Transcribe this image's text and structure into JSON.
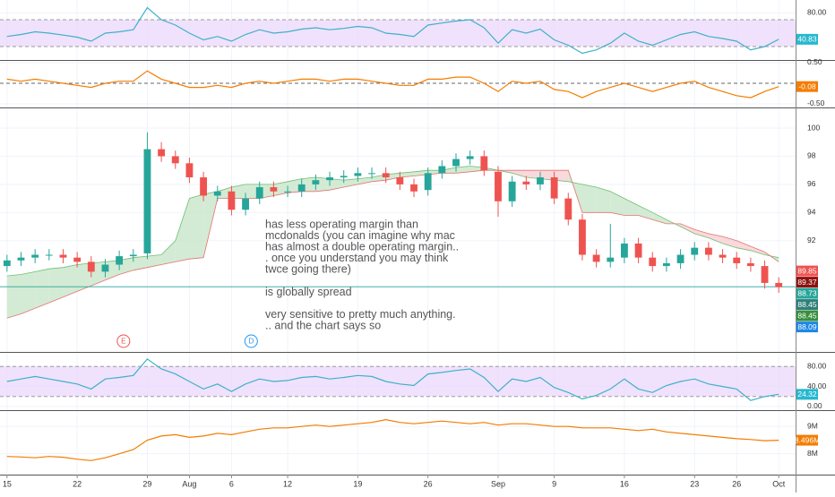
{
  "x_axis": {
    "xlim": [
      -0.5,
      56.2
    ],
    "x": [
      0,
      1,
      2,
      3,
      4,
      5,
      6,
      7,
      8,
      9,
      10,
      11,
      12,
      13,
      14,
      15,
      16,
      17,
      18,
      19,
      20,
      21,
      22,
      23,
      24,
      25,
      26,
      27,
      28,
      29,
      30,
      31,
      32,
      33,
      34,
      35,
      36,
      37,
      38,
      39,
      40,
      41,
      42,
      43,
      44,
      45,
      46,
      47,
      48,
      49,
      50,
      51,
      52,
      53,
      54,
      55
    ],
    "xticks": [
      {
        "value": 0,
        "label": "15"
      },
      {
        "value": 5,
        "label": "22"
      },
      {
        "value": 10,
        "label": "29"
      },
      {
        "value": 13,
        "label": "Aug"
      },
      {
        "value": 16,
        "label": "6"
      },
      {
        "value": 20,
        "label": "12"
      },
      {
        "value": 25,
        "label": "19"
      },
      {
        "value": 30,
        "label": "26"
      },
      {
        "value": 35,
        "label": "Sep"
      },
      {
        "value": 39,
        "label": "9"
      },
      {
        "value": 44,
        "label": "16"
      },
      {
        "value": 49,
        "label": "23"
      },
      {
        "value": 52,
        "label": "26"
      },
      {
        "value": 55,
        "label": "Oct"
      }
    ]
  },
  "chart_data": [
    {
      "type": "line",
      "ylim": [
        10,
        99.3
      ],
      "yticks": [
        {
          "value": 80,
          "label": "80.00"
        }
      ],
      "bands": [
        30,
        70
      ],
      "band_color": "#ead6fb",
      "series": [
        {
          "color": "#3fb0c9",
          "values": [
            45,
            48,
            52,
            50,
            47,
            44,
            38,
            50,
            52,
            55,
            88,
            70,
            62,
            50,
            40,
            45,
            38,
            48,
            55,
            50,
            52,
            56,
            58,
            55,
            57,
            60,
            58,
            50,
            48,
            45,
            62,
            65,
            68,
            70,
            58,
            35,
            55,
            50,
            56,
            40,
            32,
            20,
            25,
            35,
            50,
            38,
            32,
            40,
            48,
            52,
            45,
            42,
            38,
            25,
            30,
            40.83
          ]
        }
      ],
      "price_labels": [
        {
          "value": 40.83,
          "color": "#26b8cf"
        }
      ]
    },
    {
      "type": "line",
      "ylim": [
        -0.587,
        0.543
      ],
      "yticks": [
        {
          "value": 0.5,
          "label": "0.50"
        },
        {
          "value": -0.5,
          "label": "-0.50"
        }
      ],
      "hline": 0,
      "series": [
        {
          "color": "#f57c00",
          "values": [
            0.1,
            0.05,
            0.1,
            0.05,
            0,
            -0.05,
            -0.1,
            0,
            0.05,
            0.05,
            0.3,
            0.1,
            0,
            -0.1,
            -0.1,
            -0.05,
            -0.1,
            0,
            0.05,
            0,
            0.05,
            0.1,
            0.1,
            0.05,
            0.1,
            0.1,
            0.05,
            0,
            -0.05,
            -0.05,
            0.1,
            0.1,
            0.15,
            0.15,
            0,
            -0.2,
            0.05,
            0,
            0.05,
            -0.15,
            -0.2,
            -0.35,
            -0.2,
            -0.1,
            0,
            -0.1,
            -0.2,
            -0.1,
            0,
            0.05,
            -0.1,
            -0.2,
            -0.3,
            -0.35,
            -0.2,
            -0.08
          ]
        }
      ],
      "price_labels": [
        {
          "value": -0.08,
          "color": "#f57c00"
        }
      ]
    },
    {
      "type": "candlestick",
      "ylim": [
        84.1,
        101.4
      ],
      "yticks": [
        92,
        94,
        96,
        98,
        100
      ],
      "up_color": "#26a69a",
      "down_color": "#ef5350",
      "open": [
        90.2,
        90.6,
        90.8,
        91.0,
        91.0,
        90.8,
        90.5,
        89.8,
        90.3,
        90.9,
        91.1,
        98.5,
        98.0,
        97.5,
        96.5,
        95.2,
        95.5,
        94.2,
        95.0,
        95.8,
        95.5,
        95.5,
        96.0,
        96.3,
        96.5,
        96.6,
        96.8,
        96.8,
        96.5,
        96.0,
        95.6,
        96.8,
        97.3,
        97.8,
        98.0,
        96.9,
        94.8,
        96.2,
        96.0,
        96.5,
        95.0,
        93.5,
        91.0,
        90.5,
        90.8,
        91.8,
        90.8,
        90.2,
        90.4,
        91.0,
        91.5,
        91.0,
        90.8,
        90.4,
        90.2,
        89.0
      ],
      "high": [
        91.0,
        91.2,
        91.4,
        91.4,
        91.4,
        91.2,
        90.9,
        90.7,
        91.3,
        91.4,
        99.7,
        99.0,
        98.4,
        97.9,
        96.9,
        95.9,
        95.9,
        95.4,
        96.2,
        96.2,
        95.9,
        96.4,
        96.7,
        96.9,
        97.0,
        97.2,
        97.2,
        97.2,
        96.9,
        96.4,
        97.2,
        97.7,
        98.2,
        98.4,
        98.4,
        97.3,
        96.6,
        96.6,
        96.9,
        96.9,
        95.4,
        93.9,
        91.4,
        93.2,
        92.2,
        92.2,
        91.2,
        90.8,
        91.4,
        91.9,
        91.9,
        91.4,
        91.2,
        90.8,
        90.6,
        89.4
      ],
      "low": [
        89.8,
        90.2,
        90.4,
        90.6,
        90.4,
        90.1,
        89.4,
        89.4,
        89.9,
        90.5,
        90.7,
        97.6,
        97.1,
        96.1,
        94.8,
        94.8,
        93.8,
        93.8,
        94.6,
        95.1,
        95.1,
        95.1,
        95.6,
        95.9,
        96.1,
        96.2,
        96.4,
        96.1,
        95.6,
        95.1,
        95.2,
        96.4,
        96.9,
        97.4,
        96.6,
        93.7,
        94.4,
        95.6,
        95.6,
        94.6,
        93.1,
        90.6,
        90.1,
        90.1,
        90.4,
        90.4,
        89.8,
        89.8,
        90.0,
        90.6,
        90.6,
        90.4,
        90.0,
        89.8,
        88.6,
        88.3
      ],
      "close": [
        90.6,
        90.8,
        91.0,
        91.0,
        90.8,
        90.5,
        89.8,
        90.3,
        90.9,
        91.0,
        98.5,
        98.0,
        97.5,
        96.5,
        95.2,
        95.5,
        94.2,
        95.0,
        95.8,
        95.5,
        95.5,
        96.0,
        96.3,
        96.5,
        96.6,
        96.8,
        96.8,
        96.5,
        96.0,
        95.5,
        96.8,
        97.3,
        97.8,
        98.0,
        97.0,
        94.8,
        96.2,
        96.0,
        96.5,
        95.0,
        93.5,
        91.0,
        90.5,
        90.8,
        91.8,
        90.8,
        90.2,
        90.4,
        91.0,
        91.5,
        91.0,
        90.8,
        90.4,
        90.2,
        89.0,
        88.7
      ],
      "cloud": {
        "up_color": "#c8e6c9",
        "down_color": "#f8cfd2",
        "series": [
          {
            "color": "#6fbf73",
            "values": [
              89.5,
              89.6,
              89.8,
              90,
              90.1,
              90.3,
              90.4,
              90.5,
              90.6,
              90.8,
              90.9,
              91,
              92,
              95,
              95.3,
              95.5,
              95.8,
              96,
              96,
              96,
              96.2,
              96.4,
              96.5,
              96.4,
              96.3,
              96.4,
              96.5,
              96.7,
              96.8,
              96.9,
              97,
              97,
              97.2,
              97.3,
              97.2,
              97,
              96.8,
              96.5,
              96.4,
              96.3,
              96.2,
              96,
              95.8,
              95.5,
              95,
              94.5,
              94,
              93.5,
              93,
              92.5,
              92.2,
              91.8,
              91.5,
              91.3,
              91,
              90.8
            ]
          },
          {
            "color": "#e57373",
            "values": [
              86.5,
              86.8,
              87.2,
              87.6,
              88,
              88.4,
              88.8,
              89.2,
              89.6,
              89.9,
              90.1,
              90.3,
              90.5,
              90.7,
              90.8,
              95,
              95,
              95,
              95,
              95.2,
              95.4,
              95.5,
              95.5,
              95.6,
              95.8,
              96,
              96.2,
              96.3,
              96.5,
              96.6,
              96.7,
              96.8,
              96.8,
              96.9,
              97,
              97,
              97,
              97,
              97,
              97,
              97,
              94,
              94,
              94,
              93.8,
              93.8,
              93.5,
              93.2,
              93.2,
              92.8,
              92.5,
              92.3,
              92,
              91.6,
              91.2,
              90.5
            ]
          }
        ]
      },
      "price_line": {
        "value": 88.73,
        "color": "#26a69a"
      },
      "price_labels": [
        {
          "value": 89.85,
          "color": "#ef5350"
        },
        {
          "value": 89.37,
          "color": "#8e1010"
        },
        {
          "value": 88.73,
          "color": "#26a69a"
        },
        {
          "value": 88.45,
          "color": "#2f7f7a"
        },
        {
          "value": 88.45,
          "color": "#388e3c"
        },
        {
          "value": 88.09,
          "color": "#1e88e5"
        }
      ],
      "events": [
        {
          "label": "E",
          "x": 8.3,
          "color": "#ef5350"
        },
        {
          "label": "D",
          "x": 17.4,
          "color": "#2196f3"
        }
      ],
      "annotation": [
        [
          "has less operating margin than",
          "mcdonalds (you can imagine why mac",
          "has almost a double operating margin..",
          ". once you understand you may think",
          "twce going there)"
        ],
        [
          "is globally spread"
        ],
        [
          "very sensitive to pretty much anything.",
          ".. and the chart says so"
        ]
      ]
    },
    {
      "type": "line",
      "ylim": [
        -7.3,
        107.3
      ],
      "yticks": [
        {
          "value": 0,
          "label": "0.00"
        },
        {
          "value": 40,
          "label": "40.00"
        },
        {
          "value": 80,
          "label": "80.00"
        }
      ],
      "bands": [
        20,
        80
      ],
      "band_color": "#ead6fb",
      "series": [
        {
          "color": "#3fb0c9",
          "values": [
            50,
            55,
            60,
            55,
            50,
            45,
            35,
            55,
            58,
            62,
            95,
            75,
            65,
            50,
            35,
            45,
            30,
            45,
            55,
            50,
            52,
            58,
            60,
            55,
            58,
            62,
            60,
            50,
            45,
            42,
            65,
            68,
            72,
            75,
            58,
            30,
            55,
            50,
            58,
            38,
            28,
            15,
            22,
            35,
            55,
            35,
            28,
            42,
            50,
            55,
            45,
            40,
            35,
            12,
            20,
            24.32
          ]
        }
      ],
      "price_labels": [
        {
          "value": 24.32,
          "color": "#26b8cf"
        }
      ]
    },
    {
      "type": "line",
      "ylim": [
        7233000,
        9567000
      ],
      "yticks": [
        {
          "value": 9000000,
          "label": "9M"
        },
        {
          "value": 8000000,
          "label": "8M"
        }
      ],
      "series": [
        {
          "color": "#f57c00",
          "values": [
            7900000,
            7880000,
            7850000,
            7900000,
            7870000,
            7800000,
            7750000,
            7850000,
            8000000,
            8150000,
            8500000,
            8650000,
            8700000,
            8600000,
            8650000,
            8750000,
            8700000,
            8800000,
            8900000,
            8950000,
            8950000,
            9000000,
            9050000,
            9000000,
            9050000,
            9100000,
            9150000,
            9250000,
            9150000,
            9100000,
            9150000,
            9200000,
            9150000,
            9100000,
            9150000,
            9050000,
            9100000,
            9100000,
            9050000,
            9000000,
            9000000,
            8950000,
            8950000,
            8950000,
            8900000,
            8850000,
            8900000,
            8800000,
            8750000,
            8700000,
            8650000,
            8600000,
            8550000,
            8520000,
            8480000,
            8496000
          ]
        }
      ],
      "price_labels": [
        {
          "value": 8496000,
          "label": "8.496M",
          "color": "#f57c00"
        }
      ]
    }
  ]
}
